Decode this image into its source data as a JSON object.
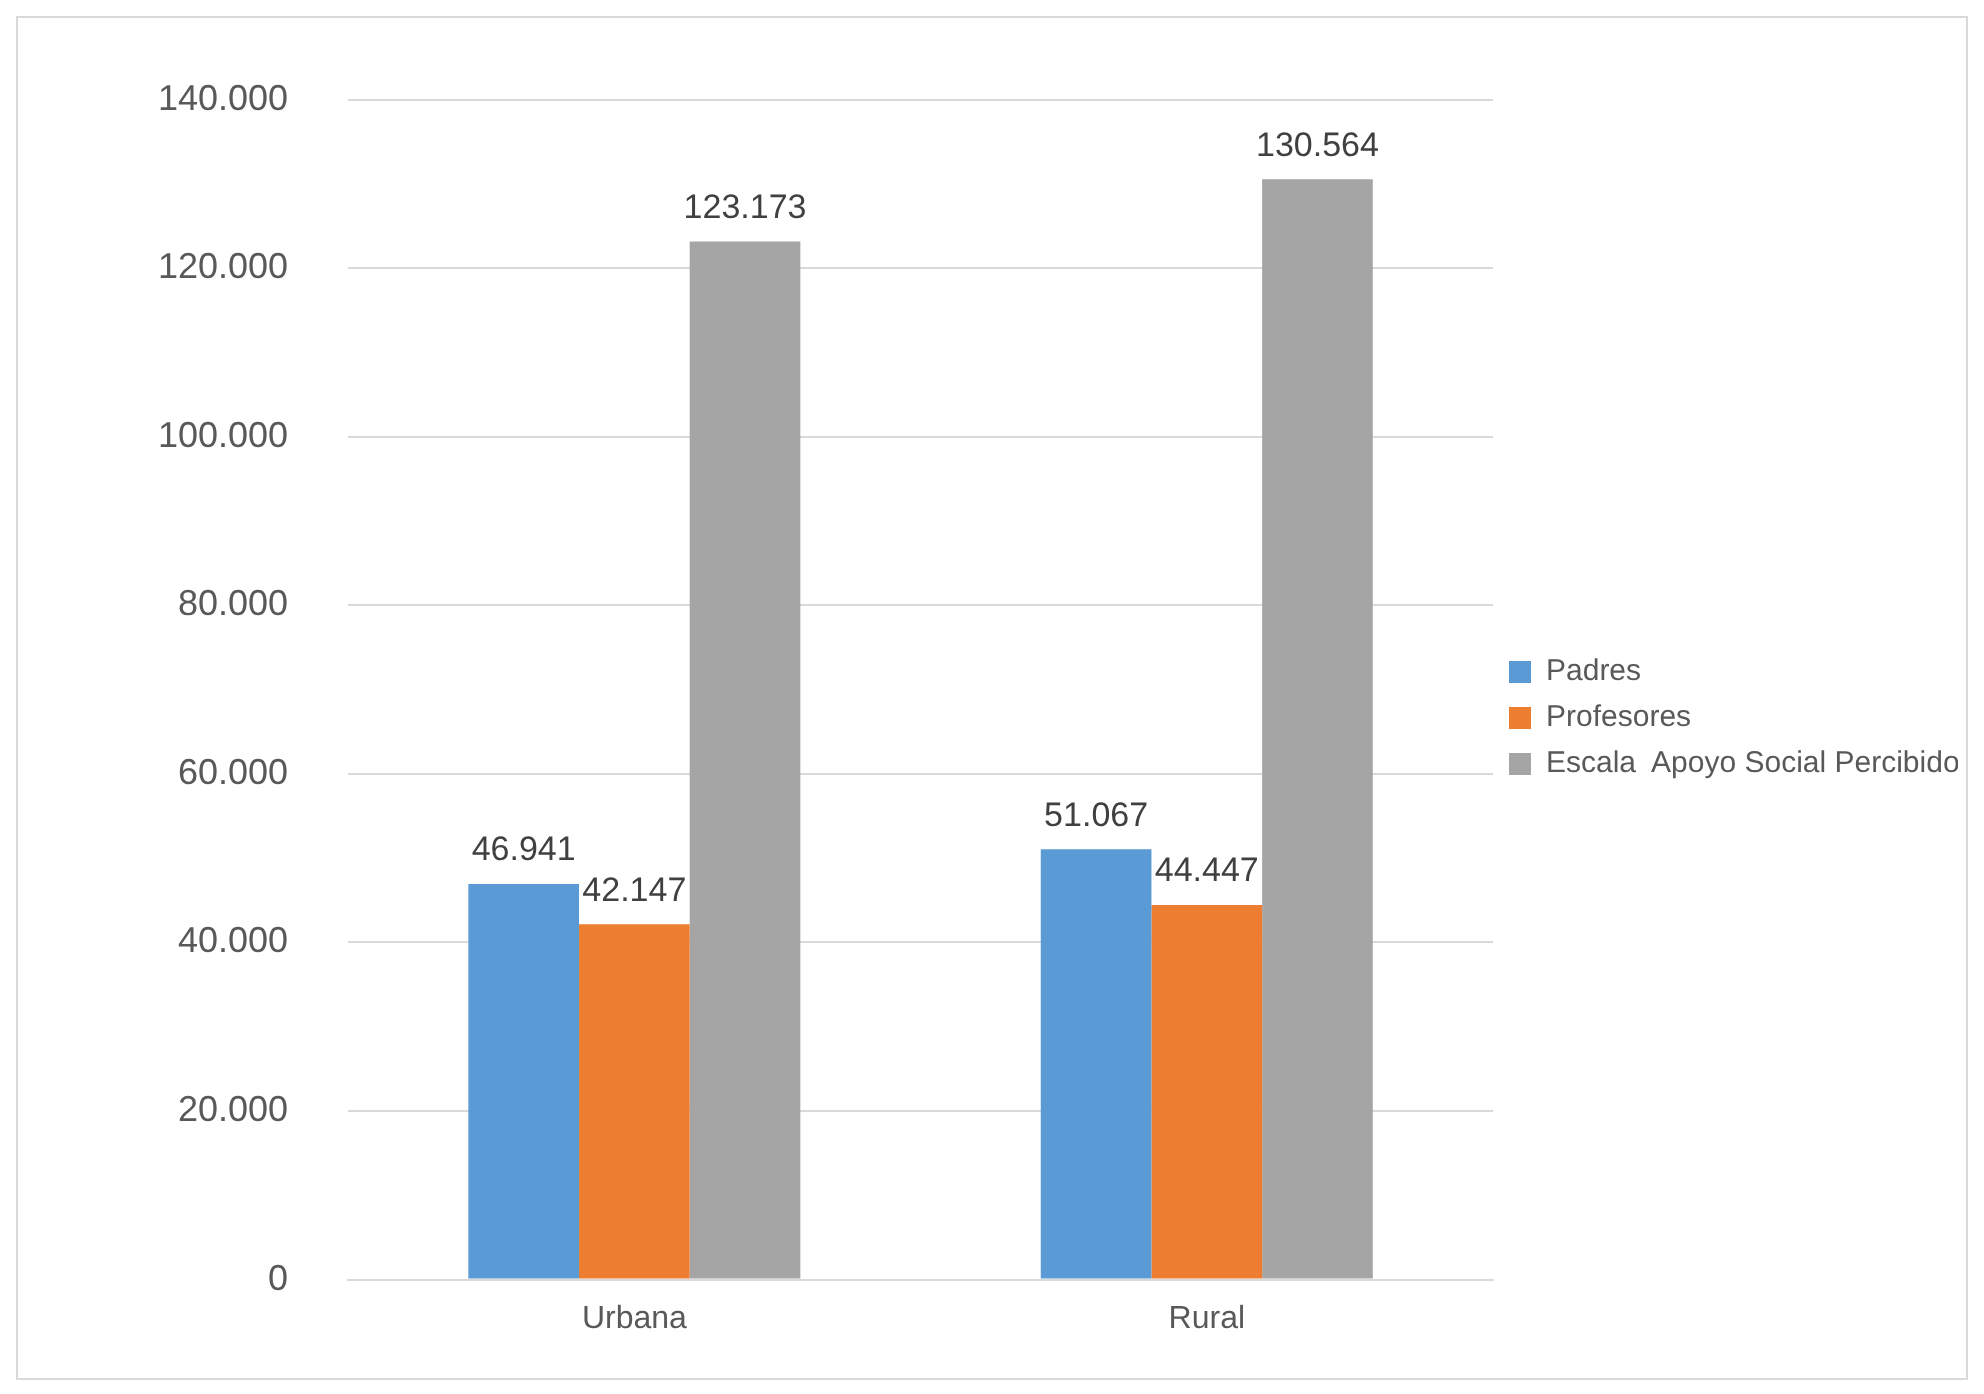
{
  "chart_data": {
    "type": "bar",
    "categories": [
      "Urbana",
      "Rural"
    ],
    "series": [
      {
        "name": "Padres",
        "color": "#5b9bd5",
        "values": [
          46941,
          51067
        ],
        "value_labels": [
          "46.941",
          "51.067"
        ]
      },
      {
        "name": "Profesores",
        "color": "#ed7d31",
        "values": [
          42147,
          44447
        ],
        "value_labels": [
          "42.147",
          "44.447"
        ]
      },
      {
        "name": "Escala  Apoyo Social Percibido",
        "color": "#a5a5a5",
        "values": [
          123173,
          130564
        ],
        "value_labels": [
          "123.173",
          "130.564"
        ]
      }
    ],
    "ylim": [
      0,
      140000
    ],
    "yticks": [
      0,
      {
        "value": 20000,
        "label": "20.000"
      },
      {
        "value": 40000,
        "label": "40.000"
      },
      {
        "value": 60000,
        "label": "60.000"
      },
      {
        "value": 80000,
        "label": "80.000"
      },
      {
        "value": 100000,
        "label": "100.000"
      },
      {
        "value": 120000,
        "label": "120.000"
      },
      {
        "value": 140000,
        "label": "140.000"
      }
    ],
    "grid": "y",
    "legend": "right"
  }
}
